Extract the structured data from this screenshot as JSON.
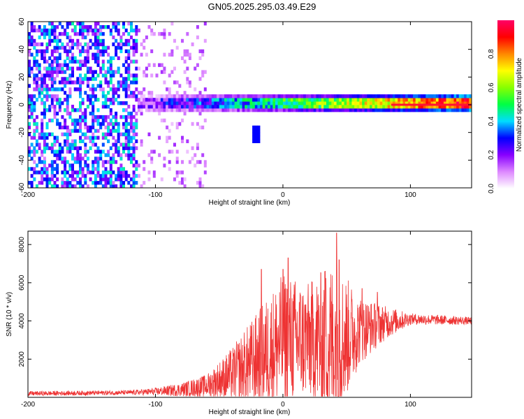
{
  "title": "GN05.2025.295.03.49.E29",
  "chart_data": [
    {
      "type": "heatmap",
      "xlabel": "Height of straight line (km)",
      "ylabel": "Frequency (Hz)",
      "xlim": [
        -200,
        148
      ],
      "ylim": [
        -60,
        60
      ],
      "x_ticks": [
        -200,
        -100,
        0,
        100
      ],
      "y_ticks": [
        60,
        40,
        20,
        0,
        -20,
        -40,
        -60
      ],
      "colorbar": {
        "label": "Normalized spectral amplitude",
        "range": [
          0.0,
          1.0
        ],
        "ticks": [
          0.0,
          0.2,
          0.4,
          0.6,
          0.8
        ],
        "colors": [
          "#ffffff",
          "#dd88ff",
          "#8800ff",
          "#0000ff",
          "#00ddff",
          "#00ff44",
          "#88ff00",
          "#ffff00",
          "#ff8800",
          "#ff0000",
          "#ff0066"
        ]
      },
      "features": {
        "noise_region_x": [
          -200,
          -115
        ],
        "faint_noise_x": [
          -115,
          -60
        ],
        "signal_band_center_hz": 0,
        "signal_band_start_km": -115,
        "peak_region_x": [
          85,
          148
        ]
      }
    },
    {
      "type": "line",
      "xlabel": "Height of straight line (km)",
      "ylabel": "SNR (10 * v/v)",
      "xlim": [
        -200,
        148
      ],
      "ylim": [
        0,
        8700
      ],
      "x_ticks": [
        -200,
        -100,
        0,
        100
      ],
      "y_ticks": [
        2000,
        4000,
        6000,
        8000
      ],
      "color": "#ee3333",
      "envelope": [
        {
          "x": -200,
          "base": 200,
          "amp": 120
        },
        {
          "x": -120,
          "base": 250,
          "amp": 120
        },
        {
          "x": -100,
          "base": 300,
          "amp": 200
        },
        {
          "x": -80,
          "base": 400,
          "amp": 350
        },
        {
          "x": -60,
          "base": 600,
          "amp": 600
        },
        {
          "x": -40,
          "base": 1200,
          "amp": 1400
        },
        {
          "x": -20,
          "base": 2000,
          "amp": 2500
        },
        {
          "x": 0,
          "base": 3000,
          "amp": 3500
        },
        {
          "x": 20,
          "base": 3000,
          "amp": 3000
        },
        {
          "x": 40,
          "base": 2800,
          "amp": 4500
        },
        {
          "x": 60,
          "base": 3500,
          "amp": 1800
        },
        {
          "x": 80,
          "base": 3900,
          "amp": 900
        },
        {
          "x": 100,
          "base": 4100,
          "amp": 300
        },
        {
          "x": 148,
          "base": 4000,
          "amp": 200
        }
      ],
      "spikes": [
        {
          "x": -17,
          "y": 6700
        },
        {
          "x": 0,
          "y": 6700
        },
        {
          "x": 4,
          "y": 7300
        },
        {
          "x": 33,
          "y": 6600
        },
        {
          "x": 42,
          "y": 8600
        },
        {
          "x": 44,
          "y": 7200
        },
        {
          "x": 62,
          "y": 5700
        },
        {
          "x": 74,
          "y": 5500
        }
      ]
    }
  ]
}
